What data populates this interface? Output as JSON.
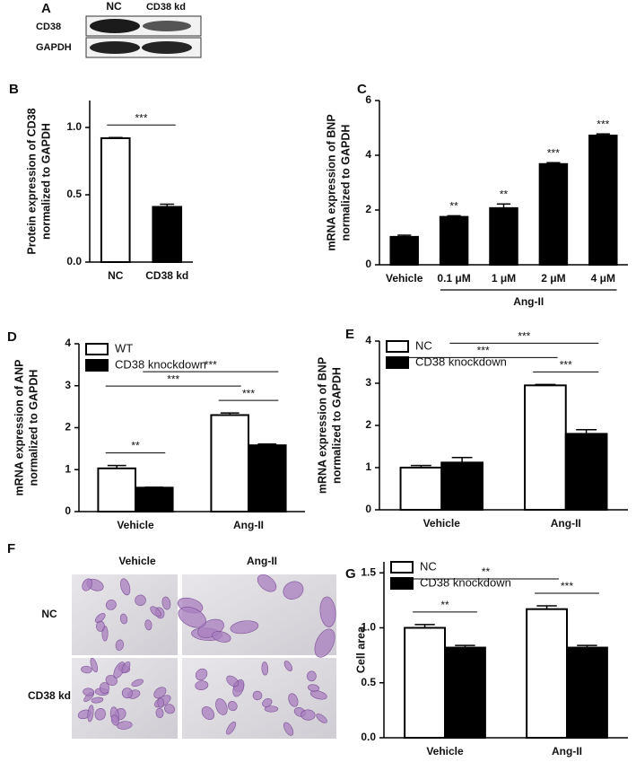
{
  "blot": {
    "label": "A",
    "columns": [
      "NC",
      "CD38 kd"
    ],
    "rows": [
      "CD38",
      "GAPDH"
    ]
  },
  "micrographs": {
    "label": "F",
    "columns": [
      "Vehicle",
      "Ang-II"
    ],
    "rows": [
      "NC",
      "CD38 kd"
    ]
  },
  "chart_data": [
    {
      "type": "bar",
      "label": "B",
      "ylabel": [
        "Protein expression of CD38",
        "normalized to GAPDH"
      ],
      "categories": [
        "NC",
        "CD38 kd"
      ],
      "values": [
        0.92,
        0.41
      ],
      "errors": [
        0.005,
        0.02
      ],
      "colors": [
        "#ffffff",
        "#000000"
      ],
      "ylim": [
        0,
        1.2
      ],
      "yticks": [
        {
          "value": 0,
          "label": "0.0"
        },
        {
          "value": 0.5,
          "label": "0.5"
        },
        {
          "value": 1,
          "label": "1.0"
        }
      ],
      "brackets": [
        {
          "text": "***",
          "from": 0,
          "to": 1
        }
      ]
    },
    {
      "type": "bar",
      "label": "C",
      "ylabel": [
        "mRNA expression of BNP",
        "normalized to GAPDH"
      ],
      "categories": [
        "Vehicle",
        "0.1 μM",
        "1 μM",
        "2 μM",
        "4 μM"
      ],
      "values": [
        1.02,
        1.75,
        2.07,
        3.68,
        4.72
      ],
      "errors": [
        0.06,
        0.04,
        0.15,
        0.05,
        0.06
      ],
      "color": "#000000",
      "significance": [
        null,
        "**",
        "**",
        "***",
        "***"
      ],
      "group_label": {
        "text": "Ang-II",
        "from": 1,
        "to": 4
      },
      "ylim": [
        0,
        6
      ],
      "yticks": [
        0,
        2,
        4,
        6
      ]
    },
    {
      "type": "grouped_bar",
      "label": "D",
      "ylabel": [
        "mRNA expression of ANP",
        "normalized to GAPDH"
      ],
      "categories": [
        "Vehicle",
        "Ang-II"
      ],
      "legend": "top-left",
      "series": [
        {
          "name": "WT",
          "color": "#ffffff",
          "values": [
            1.03,
            2.3
          ],
          "errors": [
            0.07,
            0.05
          ]
        },
        {
          "name": "CD38 knockdown",
          "color": "#000000",
          "values": [
            0.57,
            1.58
          ],
          "errors": [
            0.01,
            0.03
          ]
        }
      ],
      "ylim": [
        0,
        4
      ],
      "yticks": [
        0,
        1,
        2,
        3,
        4
      ],
      "brackets": [
        {
          "text": "**",
          "from": [
            0,
            0
          ],
          "to": [
            0,
            1
          ]
        },
        {
          "text": "***",
          "from": [
            1,
            0
          ],
          "to": [
            1,
            1
          ]
        },
        {
          "text": "***",
          "from": [
            0,
            0
          ],
          "to": [
            1,
            0
          ]
        },
        {
          "text": "***",
          "from": [
            0,
            1
          ],
          "to": [
            1,
            1
          ]
        }
      ]
    },
    {
      "type": "grouped_bar",
      "label": "E",
      "ylabel": [
        "mRNA expression of BNP",
        "normalized to GAPDH"
      ],
      "categories": [
        "Vehicle",
        "Ang-II"
      ],
      "legend": "top-left",
      "series": [
        {
          "name": "NC",
          "color": "#ffffff",
          "values": [
            1.0,
            2.95
          ],
          "errors": [
            0.05,
            0.02
          ]
        },
        {
          "name": "CD38 knockdown",
          "color": "#000000",
          "values": [
            1.12,
            1.8
          ],
          "errors": [
            0.12,
            0.1
          ]
        }
      ],
      "ylim": [
        0,
        4
      ],
      "yticks": [
        0,
        1,
        2,
        3,
        4
      ],
      "brackets": [
        {
          "text": "***",
          "from": [
            1,
            0
          ],
          "to": [
            1,
            1
          ]
        },
        {
          "text": "***",
          "from": [
            0,
            0
          ],
          "to": [
            1,
            0
          ]
        },
        {
          "text": "***",
          "from": [
            0,
            1
          ],
          "to": [
            1,
            1
          ]
        }
      ]
    },
    {
      "type": "grouped_bar",
      "label": "G",
      "ylabel": [
        "Cell area"
      ],
      "categories": [
        "Vehicle",
        "Ang-II"
      ],
      "legend": "top-left",
      "series": [
        {
          "name": "NC",
          "color": "#ffffff",
          "values": [
            1.0,
            1.17
          ],
          "errors": [
            0.03,
            0.03
          ]
        },
        {
          "name": "CD38 knockdown",
          "color": "#000000",
          "values": [
            0.82,
            0.82
          ],
          "errors": [
            0.02,
            0.02
          ]
        }
      ],
      "ylim": [
        0,
        1.6
      ],
      "yticks": [
        {
          "value": 0,
          "label": "0.0"
        },
        {
          "value": 0.5,
          "label": "0.5"
        },
        {
          "value": 1,
          "label": "1.0"
        },
        {
          "value": 1.5,
          "label": "1.5"
        }
      ],
      "brackets": [
        {
          "text": "**",
          "from": [
            0,
            0
          ],
          "to": [
            0,
            1
          ]
        },
        {
          "text": "***",
          "from": [
            1,
            0
          ],
          "to": [
            1,
            1
          ]
        },
        {
          "text": "**",
          "from": [
            0,
            0
          ],
          "to": [
            1,
            0
          ]
        }
      ]
    }
  ]
}
